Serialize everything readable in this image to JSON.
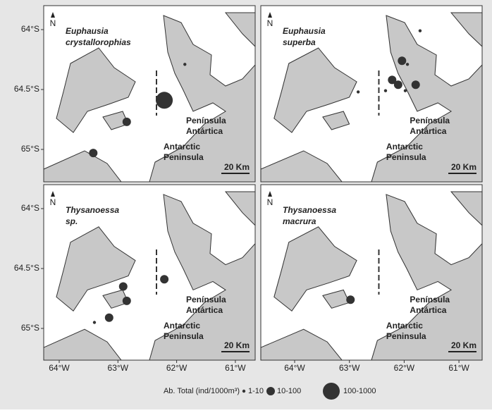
{
  "map": {
    "lat_ticks": [
      {
        "value": -64,
        "label": "64°S"
      },
      {
        "value": -64.5,
        "label": "64.5°S"
      },
      {
        "value": -65,
        "label": "65°S"
      }
    ],
    "lon_ticks": [
      {
        "value": -64,
        "label": "64°W"
      },
      {
        "value": -63,
        "label": "63°W"
      },
      {
        "value": -62,
        "label": "62°W"
      },
      {
        "value": -61,
        "label": "61°W"
      }
    ],
    "north": "N",
    "scale_bar": "20 Km",
    "spanish_label": [
      "Península",
      "Antártica"
    ],
    "english_label": [
      "Antarctic",
      "Peninsula"
    ]
  },
  "panels": [
    {
      "title_lines": [
        "Euphausia",
        "crystallorophias"
      ],
      "stations": [
        {
          "lon": -62.21,
          "lat": -64.59,
          "class": 2
        },
        {
          "lon": -61.86,
          "lat": -64.29,
          "class": 0
        },
        {
          "lon": -62.85,
          "lat": -64.77,
          "class": 1
        },
        {
          "lon": -63.42,
          "lat": -65.03,
          "class": 1
        }
      ]
    },
    {
      "title_lines": [
        "Euphausia",
        "superba"
      ],
      "stations": [
        {
          "lon": -62.04,
          "lat": -64.26,
          "class": 1
        },
        {
          "lon": -62.22,
          "lat": -64.42,
          "class": 1
        },
        {
          "lon": -62.11,
          "lat": -64.46,
          "class": 1
        },
        {
          "lon": -61.79,
          "lat": -64.46,
          "class": 1
        },
        {
          "lon": -61.71,
          "lat": -64.01,
          "class": 0
        },
        {
          "lon": -61.94,
          "lat": -64.29,
          "class": 0
        },
        {
          "lon": -62.84,
          "lat": -64.52,
          "class": 0
        },
        {
          "lon": -62.34,
          "lat": -64.51,
          "class": 0
        },
        {
          "lon": -61.98,
          "lat": -64.51,
          "class": 0
        }
      ]
    },
    {
      "title_lines": [
        "Thysanoessa",
        "sp."
      ],
      "stations": [
        {
          "lon": -62.91,
          "lat": -64.65,
          "class": 1
        },
        {
          "lon": -62.85,
          "lat": -64.77,
          "class": 1
        },
        {
          "lon": -62.21,
          "lat": -64.59,
          "class": 1
        },
        {
          "lon": -63.15,
          "lat": -64.91,
          "class": 1
        },
        {
          "lon": -63.4,
          "lat": -64.95,
          "class": 0
        }
      ]
    },
    {
      "title_lines": [
        "Thysanoessa",
        "macrura"
      ],
      "stations": [
        {
          "lon": -62.98,
          "lat": -64.76,
          "class": 1
        }
      ]
    }
  ],
  "legend": {
    "title": "Ab. Total (ind/1000m³)",
    "classes": [
      "1-10",
      "10-100",
      "100-1000"
    ]
  }
}
